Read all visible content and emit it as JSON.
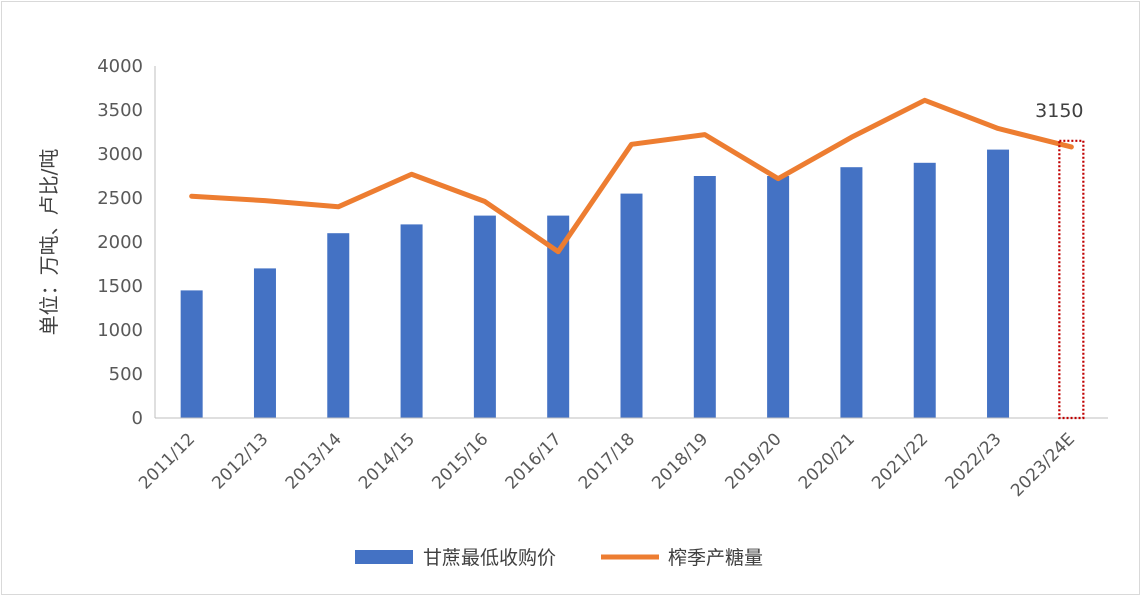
{
  "chart_data": {
    "type": "bar",
    "categories": [
      "2011/12",
      "2012/13",
      "2013/14",
      "2014/15",
      "2015/16",
      "2016/17",
      "2017/18",
      "2018/19",
      "2019/20",
      "2020/21",
      "2021/22",
      "2022/23",
      "2023/24E"
    ],
    "series": [
      {
        "name": "甘蔗最低收购价",
        "type": "bar",
        "color": "#4472C4",
        "values": [
          1450,
          1700,
          2100,
          2200,
          2300,
          2300,
          2550,
          2750,
          2750,
          2850,
          2900,
          3050,
          null
        ]
      },
      {
        "name": "榨季产糖量",
        "type": "line",
        "color": "#ED7D31",
        "values": [
          2520,
          2470,
          2400,
          2770,
          2460,
          1890,
          3110,
          3220,
          2720,
          3190,
          3610,
          3290,
          3080
        ]
      }
    ],
    "xlabel": "",
    "ylabel": "单位：万吨、卢比/吨",
    "ylim": [
      0,
      4000
    ],
    "yticks": [
      0,
      500,
      1000,
      1500,
      2000,
      2500,
      3000,
      3500,
      4000
    ],
    "annotation": {
      "text": "3150",
      "category": "2023/24E",
      "box_color": "#C00000"
    },
    "grid": false,
    "legend": "bottom"
  }
}
